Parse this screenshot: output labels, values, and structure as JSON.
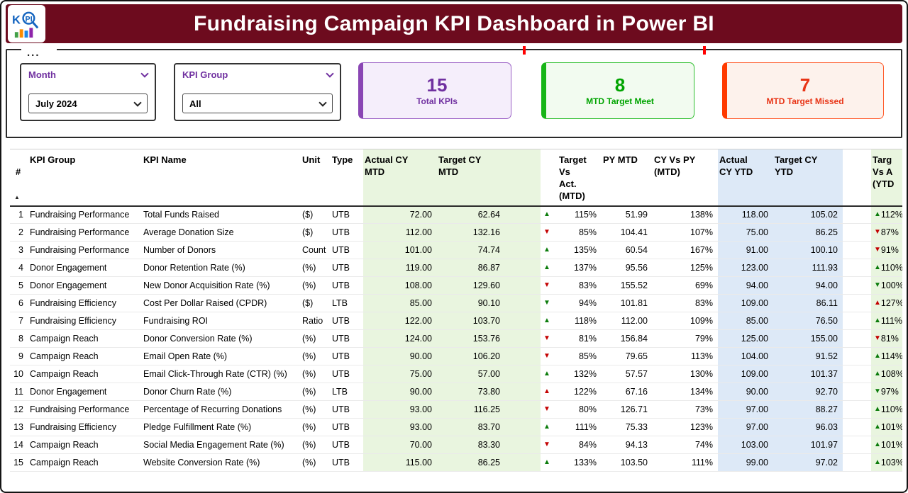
{
  "header": {
    "title": "Fundraising Campaign KPI Dashboard in Power BI",
    "logo": "KPI"
  },
  "panel": {
    "options_menu": "...",
    "colors": {
      "banner": "#6d0b1e",
      "purple": "#7030a0",
      "green": "#00a400",
      "red": "#ff3a00"
    }
  },
  "slicers": [
    {
      "label": "Month",
      "value": "July 2024"
    },
    {
      "label": "KPI Group",
      "value": "All"
    }
  ],
  "cards": [
    {
      "value": "15",
      "label": "Total KPIs",
      "color": "#7030a0"
    },
    {
      "value": "8",
      "label": "MTD Target Meet",
      "color": "#00a400"
    },
    {
      "value": "7",
      "label": "MTD Target Missed",
      "color": "#e83517"
    }
  ],
  "table": {
    "sort_indicator": "▲",
    "columns": [
      "#",
      "KPI Group",
      "KPI Name",
      "Unit",
      "Type",
      "Actual CY\nMTD",
      "Target CY\nMTD",
      "Target Vs\nAct.\n(MTD)",
      "PY MTD",
      "CY Vs PY\n(MTD)",
      "Actual\nCY YTD",
      "Target CY\nYTD",
      "Targ\nVs A\n(YTD"
    ],
    "cell_colors": {
      "mtd_block": "#e9f5df",
      "ytd_block": "#dde9f7",
      "up_good": "#0b7c0b",
      "down_bad": "#c40000"
    },
    "rows": [
      [
        "1",
        "Fundraising Performance",
        "Total Funds Raised",
        "($)",
        "UTB",
        "72.00",
        "62.64",
        "up",
        "good",
        "115%",
        "51.99",
        "138%",
        "118.00",
        "105.02",
        "up",
        "good",
        "112%"
      ],
      [
        "2",
        "Fundraising Performance",
        "Average Donation Size",
        "($)",
        "UTB",
        "112.00",
        "132.16",
        "down",
        "bad",
        "85%",
        "104.41",
        "107%",
        "75.00",
        "86.25",
        "down",
        "bad",
        "87%"
      ],
      [
        "3",
        "Fundraising Performance",
        "Number of Donors",
        "Count",
        "UTB",
        "101.00",
        "74.74",
        "up",
        "good",
        "135%",
        "60.54",
        "167%",
        "91.00",
        "100.10",
        "down",
        "bad",
        "91%"
      ],
      [
        "4",
        "Donor Engagement",
        "Donor Retention Rate (%)",
        "(%)",
        "UTB",
        "119.00",
        "86.87",
        "up",
        "good",
        "137%",
        "95.56",
        "125%",
        "123.00",
        "111.93",
        "up",
        "good",
        "110%"
      ],
      [
        "5",
        "Donor Engagement",
        "New Donor Acquisition Rate (%)",
        "(%)",
        "UTB",
        "108.00",
        "129.60",
        "down",
        "bad",
        "83%",
        "155.52",
        "69%",
        "94.00",
        "94.00",
        "down",
        "good",
        "100%"
      ],
      [
        "6",
        "Fundraising Efficiency",
        "Cost Per Dollar Raised (CPDR)",
        "($)",
        "LTB",
        "85.00",
        "90.10",
        "down",
        "good",
        "94%",
        "101.81",
        "83%",
        "109.00",
        "86.11",
        "up",
        "bad",
        "127%"
      ],
      [
        "7",
        "Fundraising Efficiency",
        "Fundraising ROI",
        "Ratio",
        "UTB",
        "122.00",
        "103.70",
        "up",
        "good",
        "118%",
        "112.00",
        "109%",
        "85.00",
        "76.50",
        "up",
        "good",
        "111%"
      ],
      [
        "8",
        "Campaign Reach",
        "Donor Conversion Rate (%)",
        "(%)",
        "UTB",
        "124.00",
        "153.76",
        "down",
        "bad",
        "81%",
        "156.84",
        "79%",
        "125.00",
        "155.00",
        "down",
        "bad",
        "81%"
      ],
      [
        "9",
        "Campaign Reach",
        "Email Open Rate (%)",
        "(%)",
        "UTB",
        "90.00",
        "106.20",
        "down",
        "bad",
        "85%",
        "79.65",
        "113%",
        "104.00",
        "91.52",
        "up",
        "good",
        "114%"
      ],
      [
        "10",
        "Campaign Reach",
        "Email Click-Through Rate (CTR) (%)",
        "(%)",
        "UTB",
        "75.00",
        "57.00",
        "up",
        "good",
        "132%",
        "57.57",
        "130%",
        "109.00",
        "101.37",
        "up",
        "good",
        "108%"
      ],
      [
        "11",
        "Donor Engagement",
        "Donor Churn Rate (%)",
        "(%)",
        "LTB",
        "90.00",
        "73.80",
        "up",
        "bad",
        "122%",
        "67.16",
        "134%",
        "90.00",
        "92.70",
        "down",
        "good",
        "97%"
      ],
      [
        "12",
        "Fundraising Performance",
        "Percentage of Recurring Donations",
        "(%)",
        "UTB",
        "93.00",
        "116.25",
        "down",
        "bad",
        "80%",
        "126.71",
        "73%",
        "97.00",
        "88.27",
        "up",
        "good",
        "110%"
      ],
      [
        "13",
        "Fundraising Efficiency",
        "Pledge Fulfillment Rate (%)",
        "(%)",
        "UTB",
        "93.00",
        "83.70",
        "up",
        "good",
        "111%",
        "75.33",
        "123%",
        "97.00",
        "96.03",
        "up",
        "good",
        "101%"
      ],
      [
        "14",
        "Campaign Reach",
        "Social Media Engagement Rate (%)",
        "(%)",
        "UTB",
        "70.00",
        "83.30",
        "down",
        "bad",
        "84%",
        "94.13",
        "74%",
        "103.00",
        "101.97",
        "up",
        "good",
        "101%"
      ],
      [
        "15",
        "Campaign Reach",
        "Website Conversion Rate (%)",
        "(%)",
        "UTB",
        "115.00",
        "86.25",
        "up",
        "good",
        "133%",
        "103.50",
        "111%",
        "99.00",
        "97.02",
        "up",
        "good",
        "103%"
      ]
    ]
  }
}
